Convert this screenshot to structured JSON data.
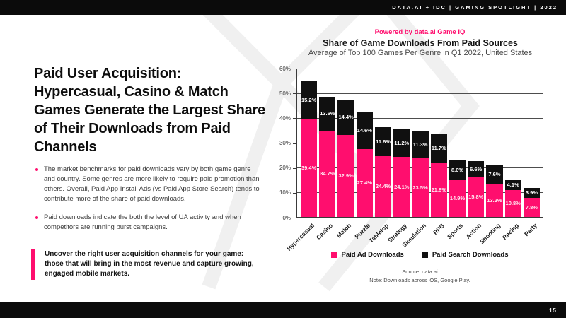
{
  "frame": {
    "header": "DATA.AI + IDC  |  GAMING SPOTLIGHT  |  2022",
    "page_number": "15"
  },
  "colors": {
    "accent_pink": "#FF0E6E",
    "ink_black": "#101010",
    "grid_gray": "#4d4d4d"
  },
  "left": {
    "title": "Paid User Acquisition: Hypercasual, Casino & Match Games Generate the Largest Share of Their Downloads from Paid Channels",
    "bullets": [
      "The market benchmarks for paid downloads vary by both game genre and country. Some genres are more likely to require paid promotion than others. Overall, Paid App Install Ads (vs Paid App Store Search) tends to contribute more of the share of paid downloads.",
      "Paid downloads indicate the both the level of UA activity and when competitors are running burst campaigns."
    ],
    "callout": {
      "line1_prefix": "Uncover the ",
      "line1_underline": "right user acquisition channels for your game",
      "line1_colon": ":",
      "line2": "those that will bring in the most revenue and capture",
      "line3": "growing, engaged mobile markets."
    }
  },
  "chart": {
    "powered_by": "Powered by data.ai Game IQ",
    "title": "Share of Game Downloads From Paid Sources",
    "subtitle": "Average of Top 100 Games Per Genre in Q1 2022, United States",
    "source_line1": "Source: data.ai",
    "source_line2": "Note: Downloads across iOS, Google Play."
  },
  "chart_data": {
    "type": "bar",
    "stacked": true,
    "title": "Share of Game Downloads From Paid Sources",
    "subtitle": "Average of Top 100 Games Per Genre in Q1 2022, United States",
    "categories": [
      "Hypercasual",
      "Casino",
      "Match",
      "Puzzle",
      "Tabletop",
      "Strategy",
      "Simulation",
      "RPG",
      "Sports",
      "Action",
      "Shooting",
      "Racing",
      "Party"
    ],
    "series": [
      {
        "name": "Paid Ad Downloads",
        "color": "#FF0E6E",
        "values": [
          39.4,
          34.7,
          32.9,
          27.4,
          24.4,
          24.1,
          23.5,
          21.8,
          14.9,
          15.8,
          13.2,
          10.8,
          7.8
        ]
      },
      {
        "name": "Paid Search Downloads",
        "color": "#101010",
        "values": [
          15.2,
          13.6,
          14.4,
          14.6,
          11.6,
          11.2,
          11.3,
          11.7,
          8.0,
          6.6,
          7.6,
          4.1,
          3.9
        ]
      }
    ],
    "xlabel": "",
    "ylabel": "",
    "ylim": [
      0,
      60
    ],
    "ytick_labels": [
      "0%",
      "10%",
      "20%",
      "30%",
      "40%",
      "50%",
      "60%"
    ],
    "grid": true,
    "legend_position": "bottom",
    "value_labels": "percent_one_decimal"
  }
}
